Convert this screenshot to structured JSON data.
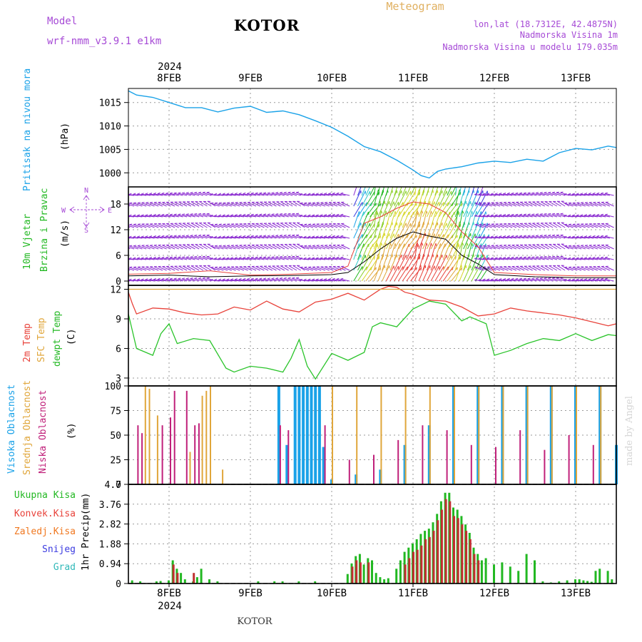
{
  "header": {
    "model_label": "Model",
    "model_name": "wrf-nmm_v3.9.1 e1km",
    "station": "KOTOR",
    "chart_kind": "Meteogram",
    "lonlat": "lon,lat (18.7312E, 42.4875N)",
    "elevation": "Nadmorska Visina 1m",
    "model_elevation": "Nadmorska Visina u modelu 179.035m",
    "footer_station": "KOTOR",
    "watermark": "made by Angel",
    "year_top": "2024",
    "year_bottom": "2024"
  },
  "colors": {
    "pressure": "#1aa2e8",
    "temp2m": "#e8423a",
    "sfc": "#e0a63a",
    "dewpt": "#2ac42a",
    "high_cloud": "#1aa2e8",
    "mid_cloud": "#e0a63a",
    "low_cloud": "#c0207a",
    "total_precip": "#22b822",
    "conv_precip": "#c03030",
    "frozen": "#f07820",
    "snow": "#3b3be0",
    "hail": "#30b8b8",
    "wind_arrow": "#8a2ad0",
    "model_text": "#a64ad6"
  },
  "chart_data": [
    {
      "panel": "pressure",
      "type": "line",
      "ylabel": "Pritisak na nivou mora",
      "units": "(hPa)",
      "yticks": [
        1000,
        1005,
        1010,
        1015
      ],
      "ylim": [
        997,
        1018
      ],
      "x_dates": [
        "8FEB",
        "9FEB",
        "10FEB",
        "11FEB",
        "12FEB",
        "13FEB"
      ],
      "x": [
        7.5,
        7.6,
        7.8,
        8.0,
        8.2,
        8.4,
        8.6,
        8.8,
        9.0,
        9.2,
        9.4,
        9.6,
        9.8,
        10.0,
        10.2,
        10.4,
        10.6,
        10.8,
        11.0,
        11.1,
        11.2,
        11.3,
        11.4,
        11.6,
        11.8,
        12.0,
        12.2,
        12.4,
        12.6,
        12.8,
        13.0,
        13.2,
        13.4,
        13.5
      ],
      "values": [
        1017.5,
        1016.6,
        1016.1,
        1015.0,
        1013.9,
        1013.9,
        1013.0,
        1013.8,
        1014.2,
        1012.9,
        1013.2,
        1012.4,
        1011.1,
        1009.7,
        1007.8,
        1005.6,
        1004.5,
        1002.7,
        1000.6,
        999.4,
        998.9,
        1000.3,
        1000.8,
        1001.3,
        1002.1,
        1002.5,
        1002.2,
        1002.9,
        1002.5,
        1004.3,
        1005.2,
        1004.9,
        1005.7,
        1005.4
      ]
    },
    {
      "panel": "wind",
      "type": "line",
      "ylabel1": "10m Vjetar",
      "ylabel2": "Brzina i Pravac",
      "units": "(m/s)",
      "compass": {
        "north": "N",
        "east": "E",
        "south": "S",
        "west": "W"
      },
      "yticks": [
        0,
        6,
        12,
        18
      ],
      "ylim": [
        -1,
        22
      ],
      "x": [
        7.5,
        8.0,
        8.5,
        9.0,
        9.5,
        10.0,
        10.2,
        10.4,
        10.6,
        10.8,
        11.0,
        11.2,
        11.4,
        11.6,
        11.8,
        12.0,
        12.5,
        13.0,
        13.5
      ],
      "values": [
        1.2,
        1.4,
        1.0,
        1.2,
        1.3,
        1.5,
        2.0,
        4.5,
        7.5,
        10.0,
        11.5,
        10.5,
        9.8,
        6.0,
        4.0,
        1.5,
        1.0,
        0.8,
        0.8
      ],
      "gust_values": [
        1.6,
        1.8,
        2.4,
        1.4,
        1.6,
        2.0,
        3.5,
        13.5,
        15.0,
        17.0,
        18.5,
        18.0,
        16.0,
        11.5,
        8.0,
        2.0,
        1.5,
        1.2,
        1.2
      ]
    },
    {
      "panel": "temperature",
      "type": "line",
      "ylabel1": "2m Temp",
      "ylabel2": "SFC Temp",
      "ylabel3": "dewpt Temp",
      "units": "(C)",
      "yticks": [
        3,
        6,
        9,
        12
      ],
      "ylim": [
        2.2,
        12.4
      ],
      "series": [
        {
          "name": "2m Temp",
          "x": [
            7.5,
            7.55,
            7.6,
            7.8,
            8.0,
            8.2,
            8.4,
            8.6,
            8.8,
            9.0,
            9.2,
            9.4,
            9.6,
            9.8,
            10.0,
            10.2,
            10.4,
            10.6,
            10.7,
            10.8,
            10.9,
            11.0,
            11.2,
            11.4,
            11.6,
            11.8,
            12.0,
            12.2,
            12.4,
            12.6,
            12.8,
            13.0,
            13.2,
            13.4,
            13.5
          ],
          "values": [
            11.7,
            10.5,
            9.5,
            10.1,
            10.0,
            9.6,
            9.4,
            9.5,
            10.2,
            9.9,
            10.8,
            10.0,
            9.7,
            10.7,
            11.0,
            11.6,
            10.9,
            12.0,
            12.3,
            12.2,
            11.7,
            11.5,
            10.9,
            10.8,
            10.2,
            9.3,
            9.5,
            10.1,
            9.8,
            9.6,
            9.4,
            9.1,
            8.7,
            8.3,
            8.5
          ]
        },
        {
          "name": "SFC Temp",
          "x": [
            7.5,
            13.5
          ],
          "values": [
            12.0,
            12.0
          ]
        },
        {
          "name": "dewpt Temp",
          "x": [
            7.5,
            7.6,
            7.8,
            7.9,
            8.0,
            8.1,
            8.3,
            8.5,
            8.7,
            8.8,
            9.0,
            9.2,
            9.4,
            9.5,
            9.6,
            9.7,
            9.8,
            10.0,
            10.2,
            10.4,
            10.5,
            10.6,
            10.8,
            11.0,
            11.2,
            11.4,
            11.6,
            11.7,
            11.9,
            12.0,
            12.2,
            12.4,
            12.6,
            12.8,
            13.0,
            13.2,
            13.4,
            13.5
          ],
          "values": [
            9.5,
            6.0,
            5.3,
            7.5,
            8.5,
            6.5,
            7.0,
            6.8,
            4.0,
            3.6,
            4.2,
            4.0,
            3.6,
            5.0,
            6.9,
            4.2,
            2.9,
            5.5,
            4.8,
            5.6,
            8.2,
            8.6,
            8.2,
            10.0,
            10.8,
            10.5,
            8.8,
            9.2,
            8.5,
            5.3,
            5.8,
            6.5,
            7.0,
            6.8,
            7.5,
            6.8,
            7.4,
            7.3
          ]
        }
      ]
    },
    {
      "panel": "cloud",
      "type": "bar",
      "ylabel1": "Visoka Oblacnost",
      "ylabel2": "Srednja Oblacnost",
      "ylabel3": "Niska Oblacnost",
      "units": "(%)",
      "yticks": [
        0,
        25,
        50,
        75,
        100
      ],
      "ylim": [
        0,
        100
      ],
      "series": [
        {
          "name": "Visoka Oblacnost",
          "x": [
            9.35,
            9.45,
            9.55,
            9.6,
            9.65,
            9.7,
            9.75,
            9.8,
            9.85,
            9.9,
            10.0,
            10.3,
            10.6,
            10.9,
            11.2,
            11.5,
            11.8,
            12.1,
            12.4,
            12.7,
            13.0,
            13.3,
            13.5
          ],
          "values": [
            100,
            40,
            100,
            100,
            100,
            100,
            100,
            100,
            100,
            38,
            5,
            10,
            15,
            40,
            60,
            100,
            100,
            100,
            100,
            100,
            100,
            100,
            40
          ]
        },
        {
          "name": "Srednja Oblacnost",
          "x": [
            7.7,
            7.75,
            7.85,
            8.25,
            8.4,
            8.45,
            8.5,
            8.65,
            10.0,
            10.3,
            10.6,
            10.9,
            11.2,
            11.5,
            11.8,
            12.1,
            12.4,
            12.7,
            13.0,
            13.3
          ],
          "values": [
            100,
            97,
            70,
            33,
            90,
            95,
            100,
            15,
            100,
            100,
            100,
            100,
            100,
            100,
            100,
            100,
            100,
            100,
            100,
            100
          ]
        },
        {
          "name": "Niska Oblacnost",
          "x": [
            7.6,
            7.65,
            7.9,
            8.0,
            8.05,
            8.2,
            8.3,
            8.35,
            9.35,
            9.45,
            9.9,
            10.2,
            10.5,
            10.8,
            11.1,
            11.4,
            11.7,
            12.0,
            12.3,
            12.6,
            12.9,
            13.2
          ],
          "values": [
            60,
            52,
            60,
            68,
            95,
            95,
            60,
            62,
            60,
            55,
            60,
            25,
            30,
            45,
            60,
            55,
            40,
            38,
            55,
            35,
            50,
            40
          ]
        }
      ]
    },
    {
      "panel": "precipitation",
      "type": "bar",
      "ylabel": "1hr Precip",
      "units": "(mm)",
      "yticks": [
        0,
        0.94,
        1.88,
        2.82,
        3.76,
        4.7
      ],
      "ylim": [
        0,
        4.7
      ],
      "legend": [
        "Ukupna Kisa",
        "Konvek.Kisa",
        "Zaledj.Kisa",
        "Snijeg",
        "Grad"
      ],
      "series": [
        {
          "name": "Ukupna Kisa",
          "x": [
            7.55,
            7.65,
            7.85,
            7.9,
            8.0,
            8.05,
            8.1,
            8.15,
            8.2,
            8.3,
            8.35,
            8.4,
            8.5,
            8.6,
            9.1,
            9.3,
            9.4,
            9.6,
            9.8,
            10.2,
            10.25,
            10.3,
            10.35,
            10.4,
            10.45,
            10.5,
            10.55,
            10.6,
            10.65,
            10.7,
            10.8,
            10.85,
            10.9,
            10.95,
            11.0,
            11.05,
            11.1,
            11.15,
            11.2,
            11.25,
            11.3,
            11.35,
            11.4,
            11.45,
            11.5,
            11.55,
            11.6,
            11.65,
            11.7,
            11.75,
            11.8,
            11.85,
            11.9,
            12.0,
            12.1,
            12.2,
            12.3,
            12.4,
            12.5,
            12.6,
            12.7,
            12.8,
            12.9,
            13.0,
            13.05,
            13.1,
            13.15,
            13.2,
            13.25,
            13.3,
            13.4,
            13.45
          ],
          "values": [
            0.15,
            0.1,
            0.1,
            0.12,
            0.15,
            1.1,
            0.7,
            0.5,
            0.2,
            0.1,
            0.3,
            0.7,
            0.2,
            0.1,
            0.1,
            0.1,
            0.1,
            0.1,
            0.1,
            0.45,
            0.95,
            1.3,
            1.4,
            0.9,
            1.2,
            1.1,
            0.5,
            0.3,
            0.2,
            0.25,
            0.7,
            1.1,
            1.5,
            1.7,
            1.9,
            2.1,
            2.35,
            2.5,
            2.6,
            2.9,
            3.3,
            3.9,
            4.3,
            4.3,
            3.6,
            3.5,
            3.2,
            2.8,
            2.4,
            1.7,
            1.4,
            1.1,
            1.2,
            0.9,
            1.0,
            0.8,
            0.6,
            1.4,
            1.1,
            0.1,
            0.05,
            0.1,
            0.15,
            0.2,
            0.2,
            0.15,
            0.12,
            0.08,
            0.6,
            0.7,
            0.6,
            0.2
          ]
        },
        {
          "name": "Konvek.Kisa",
          "x": [
            8.05,
            8.1,
            8.3,
            10.25,
            10.3,
            10.35,
            10.45,
            10.9,
            10.95,
            11.0,
            11.05,
            11.1,
            11.15,
            11.2,
            11.25,
            11.3,
            11.35,
            11.4,
            11.45,
            11.5,
            11.55,
            11.6,
            11.65,
            11.7,
            11.75,
            11.8
          ],
          "values": [
            0.9,
            0.5,
            0.5,
            0.8,
            1.1,
            1.0,
            1.0,
            0.9,
            1.2,
            1.5,
            1.6,
            1.8,
            2.1,
            2.2,
            2.5,
            3.0,
            3.5,
            4.0,
            3.9,
            3.2,
            3.1,
            2.8,
            2.5,
            2.1,
            1.4,
            1.1
          ]
        }
      ]
    }
  ]
}
